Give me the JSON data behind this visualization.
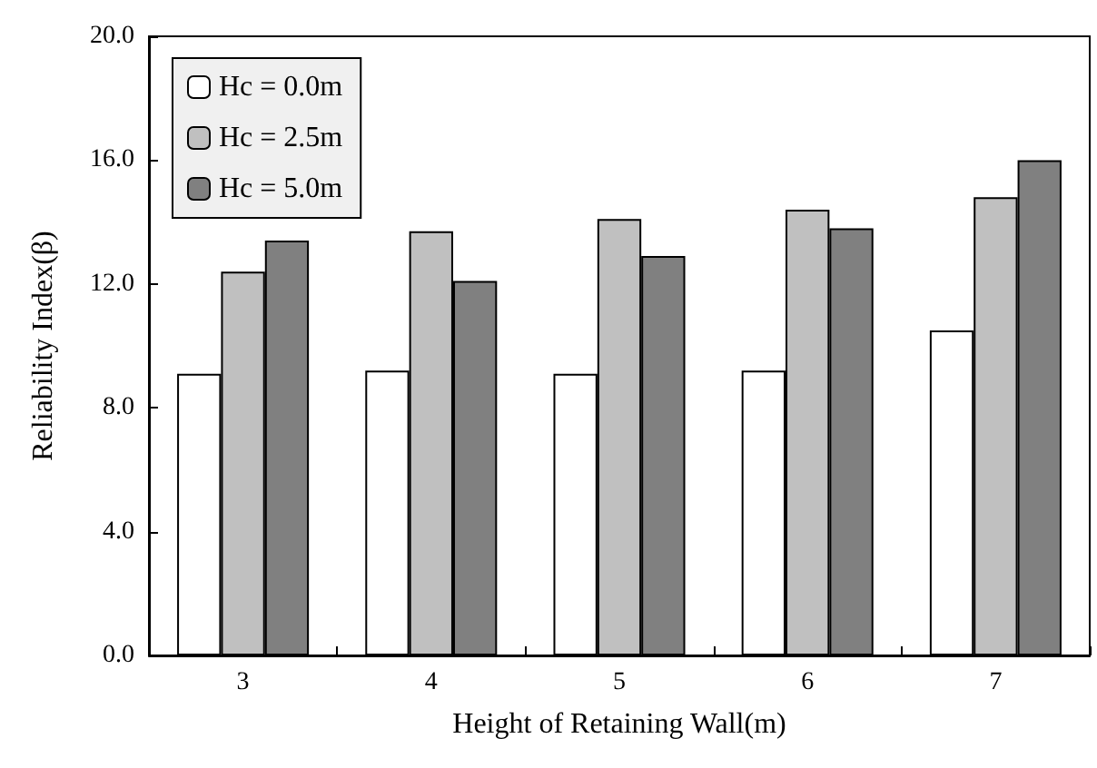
{
  "chart_data": {
    "type": "bar",
    "xlabel": "Height of Retaining Wall(m)",
    "ylabel": "Reliability Index(β)",
    "categories": [
      "3",
      "4",
      "5",
      "6",
      "7"
    ],
    "series": [
      {
        "name": "Hc = 0.0m",
        "color": "#ffffff",
        "values": [
          9.1,
          9.2,
          9.1,
          9.2,
          10.5
        ]
      },
      {
        "name": "Hc = 2.5m",
        "color": "#c0c0c0",
        "values": [
          12.4,
          13.7,
          14.1,
          14.4,
          14.8
        ]
      },
      {
        "name": "Hc = 5.0m",
        "color": "#808080",
        "values": [
          13.4,
          12.1,
          12.9,
          13.8,
          16.0
        ]
      }
    ],
    "ylim": [
      0,
      20
    ],
    "yticks": [
      {
        "value": 0,
        "label": "0.0"
      },
      {
        "value": 4,
        "label": "4.0"
      },
      {
        "value": 8,
        "label": "8.0"
      },
      {
        "value": 12,
        "label": "12.0"
      },
      {
        "value": 16,
        "label": "16.0"
      },
      {
        "value": 20,
        "label": "20.0"
      }
    ],
    "legend": "top left",
    "grid": false
  }
}
